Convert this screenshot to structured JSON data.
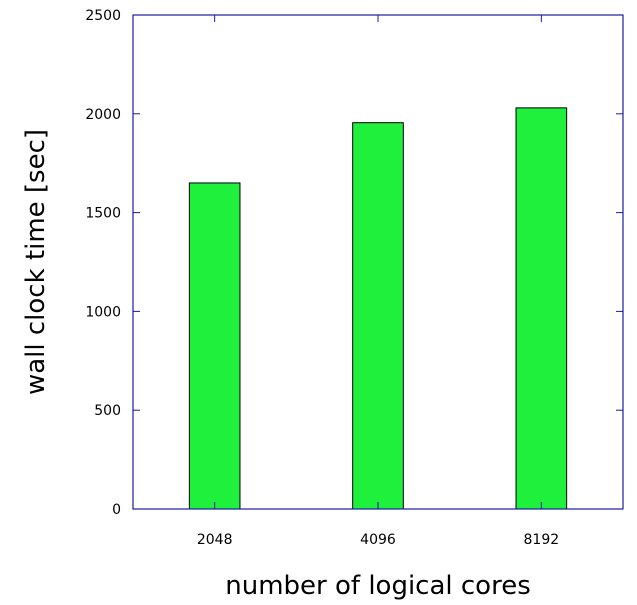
{
  "chart_data": {
    "type": "bar",
    "categories": [
      "2048",
      "4096",
      "8192"
    ],
    "values": [
      1650,
      1955,
      2030
    ],
    "xlabel": "number of logical cores",
    "ylabel": "wall clock time [sec]",
    "ylim": [
      0,
      2500
    ],
    "yticks": [
      "0",
      "500",
      "1000",
      "1500",
      "2000",
      "2500"
    ],
    "ytick_values": [
      0,
      500,
      1000,
      1500,
      2000,
      2500
    ],
    "grid": false,
    "colors": {
      "bar_fill": "#1ef03c",
      "bar_stroke": "#000000",
      "frame": "#1a1aa6"
    }
  }
}
